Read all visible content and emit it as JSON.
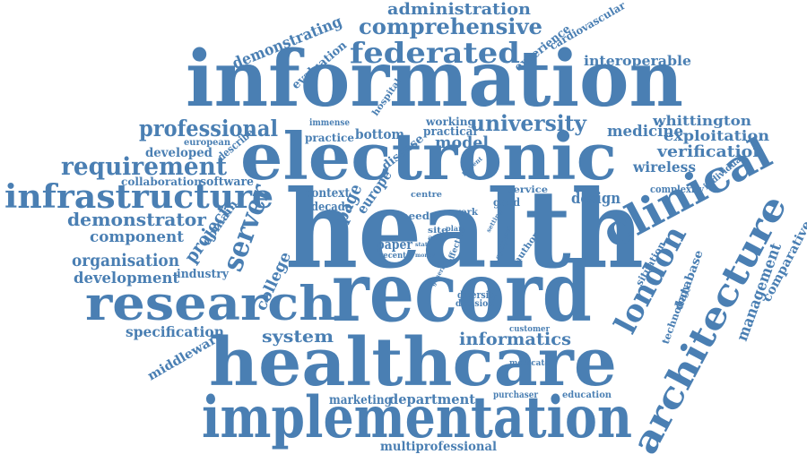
{
  "color": "#4a7fb3",
  "words": [
    {
      "text": "health"
    },
    {
      "text": "information"
    },
    {
      "text": "electronic"
    },
    {
      "text": "record"
    },
    {
      "text": "healthcare"
    },
    {
      "text": "implementation"
    },
    {
      "text": "research"
    },
    {
      "text": "clinical"
    },
    {
      "text": "architecture"
    },
    {
      "text": "infrastructure"
    },
    {
      "text": "federated"
    },
    {
      "text": "london"
    },
    {
      "text": "comprehensive"
    },
    {
      "text": "requirement"
    },
    {
      "text": "professional"
    },
    {
      "text": "server"
    },
    {
      "text": "university"
    },
    {
      "text": "administration"
    },
    {
      "text": "demonstrator"
    },
    {
      "text": "organisation"
    },
    {
      "text": "development"
    },
    {
      "text": "component"
    },
    {
      "text": "system"
    },
    {
      "text": "informatics"
    },
    {
      "text": "management"
    },
    {
      "text": "demonstrating"
    },
    {
      "text": "interoperable"
    },
    {
      "text": "verification"
    },
    {
      "text": "exploitation"
    },
    {
      "text": "whittington"
    },
    {
      "text": "medicine"
    },
    {
      "text": "wireless"
    },
    {
      "text": "design"
    },
    {
      "text": "model"
    },
    {
      "text": "specification"
    },
    {
      "text": "middleware"
    },
    {
      "text": "department"
    },
    {
      "text": "marketing"
    },
    {
      "text": "multiprofessional"
    },
    {
      "text": "project"
    },
    {
      "text": "college"
    },
    {
      "text": "page"
    },
    {
      "text": "europe"
    },
    {
      "text": "bottom"
    },
    {
      "text": "practical"
    },
    {
      "text": "working"
    },
    {
      "text": "experience"
    },
    {
      "text": "cardiovascular"
    },
    {
      "text": "evaluation"
    },
    {
      "text": "comparative"
    },
    {
      "text": "database"
    },
    {
      "text": "technology"
    },
    {
      "text": "situation"
    },
    {
      "text": "complexity"
    },
    {
      "text": "individual"
    },
    {
      "text": "developed"
    },
    {
      "text": "collaboration"
    },
    {
      "text": "software"
    },
    {
      "text": "european"
    },
    {
      "text": "describe"
    },
    {
      "text": "practice"
    },
    {
      "text": "immense"
    },
    {
      "text": "hospital"
    },
    {
      "text": "disease"
    },
    {
      "text": "domain"
    },
    {
      "text": "industry"
    },
    {
      "text": "context"
    },
    {
      "text": "decade"
    },
    {
      "text": "paper"
    },
    {
      "text": "recent"
    },
    {
      "text": "diversity"
    },
    {
      "text": "decision"
    },
    {
      "text": "centre"
    },
    {
      "text": "service"
    },
    {
      "text": "good"
    },
    {
      "text": "customer"
    },
    {
      "text": "medicate"
    },
    {
      "text": "purchaser"
    },
    {
      "text": "education"
    },
    {
      "text": "need"
    },
    {
      "text": "site"
    },
    {
      "text": "acc"
    },
    {
      "text": "work"
    },
    {
      "text": "plan"
    },
    {
      "text": "author"
    },
    {
      "text": "effective"
    },
    {
      "text": "symptom"
    },
    {
      "text": "patient"
    },
    {
      "text": "setting"
    },
    {
      "text": "generic"
    },
    {
      "text": "state"
    },
    {
      "text": "money"
    }
  ]
}
